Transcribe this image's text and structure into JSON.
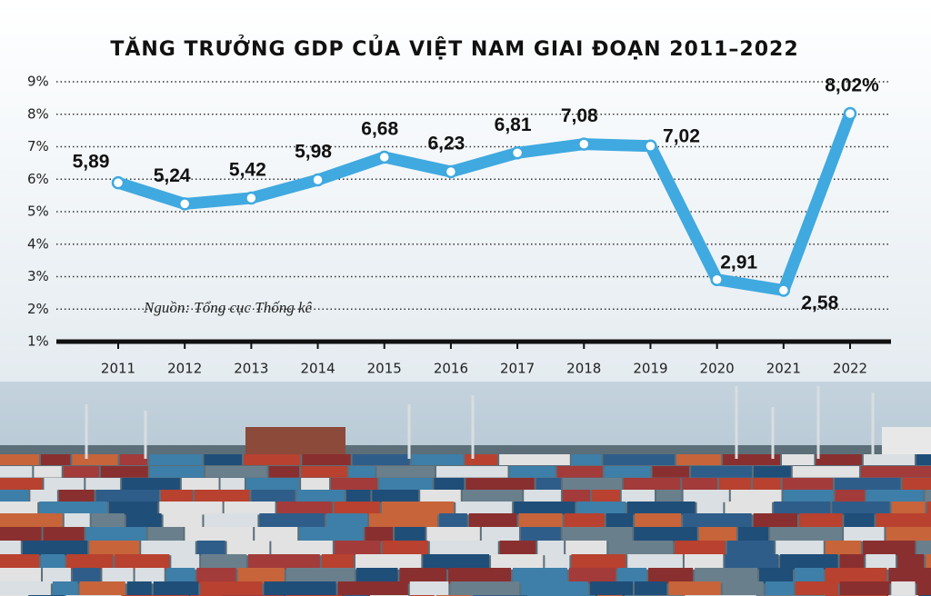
{
  "chart_data": {
    "type": "line",
    "title": "TĂNG TRƯỞNG GDP CỦA VIỆT NAM GIAI ĐOẠN 2011–2022",
    "annotation": "Nguồn: Tổng cục Thống kê",
    "categories": [
      "2011",
      "2012",
      "2013",
      "2014",
      "2015",
      "2016",
      "2017",
      "2018",
      "2019",
      "2020",
      "2021",
      "2022"
    ],
    "values": [
      5.89,
      5.24,
      5.42,
      5.98,
      6.68,
      6.23,
      6.81,
      7.08,
      7.02,
      2.91,
      2.58,
      8.02
    ],
    "value_labels": [
      "5,89",
      "5,24",
      "5,42",
      "5,98",
      "6,68",
      "6,23",
      "6,81",
      "7,08",
      "7,02",
      "2,91",
      "2,58",
      "8,02%"
    ],
    "color": "#3fa9e0",
    "ylim": [
      1,
      9
    ],
    "yticks": [
      {
        "value": 1,
        "label": "1%"
      },
      {
        "value": 2,
        "label": "2%"
      },
      {
        "value": 3,
        "label": "3%"
      },
      {
        "value": 4,
        "label": "4%"
      },
      {
        "value": 5,
        "label": "5%"
      },
      {
        "value": 6,
        "label": "6%"
      },
      {
        "value": 7,
        "label": "7%"
      },
      {
        "value": 8,
        "label": "8%"
      },
      {
        "value": 9,
        "label": "9%"
      }
    ],
    "grid": true
  }
}
